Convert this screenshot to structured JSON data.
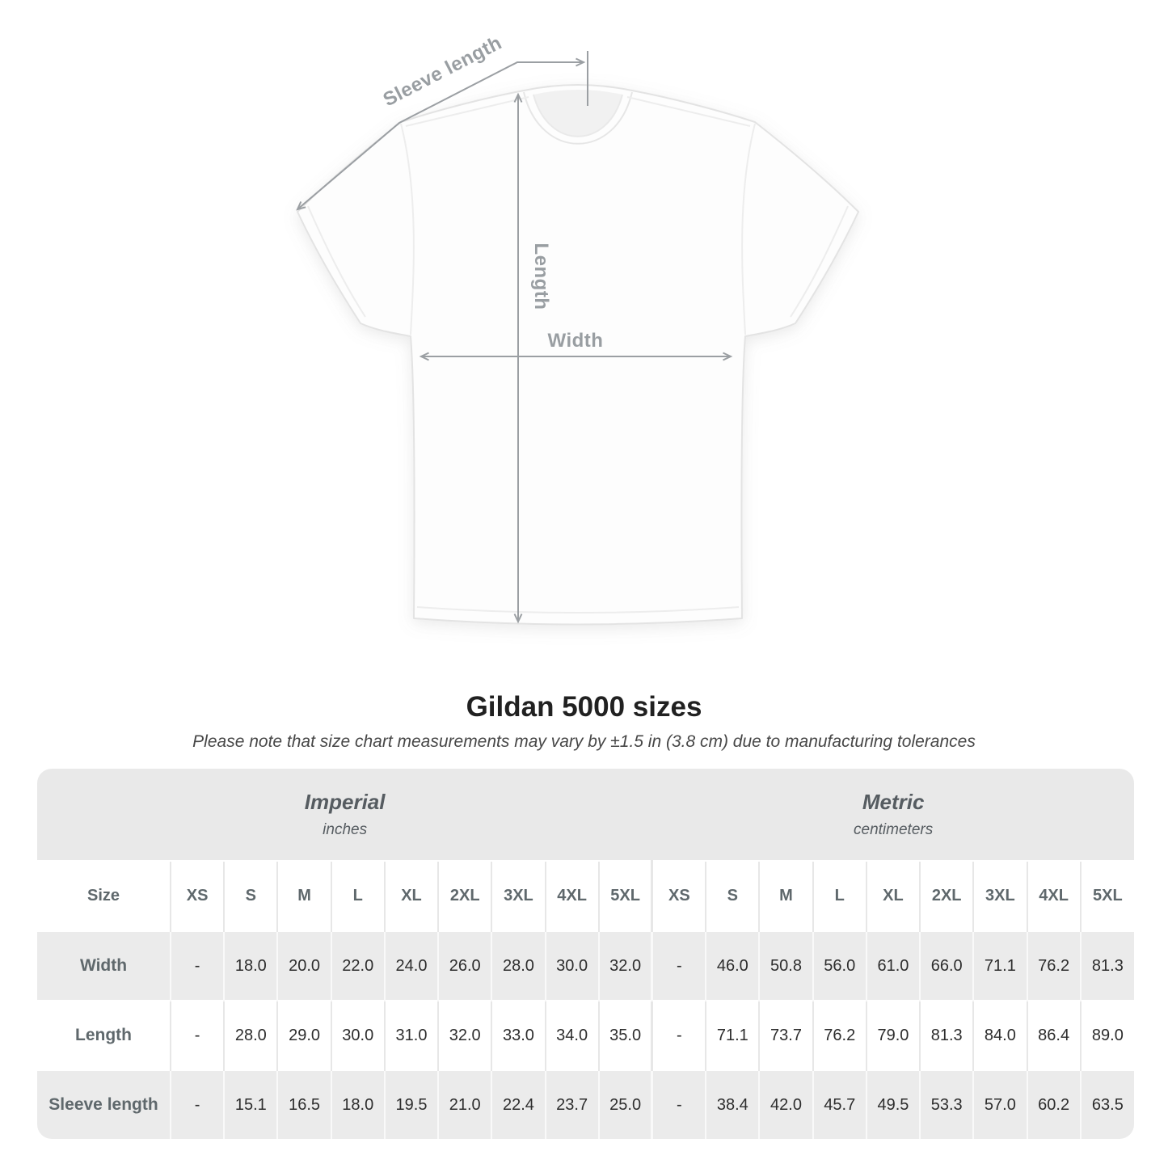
{
  "diagram": {
    "sleeve_label": "Sleeve length",
    "length_label": "Length",
    "width_label": "Width"
  },
  "heading": {
    "title": "Gildan 5000 sizes",
    "subtitle": "Please note that size chart measurements may vary by ±1.5 in (3.8 cm) due to manufacturing tolerances"
  },
  "size_table": {
    "corner_label": "Size",
    "sections": [
      {
        "name": "Imperial",
        "unit": "inches"
      },
      {
        "name": "Metric",
        "unit": "centimeters"
      }
    ],
    "sizes": [
      "XS",
      "S",
      "M",
      "L",
      "XL",
      "2XL",
      "3XL",
      "4XL",
      "5XL"
    ],
    "rows": [
      {
        "label": "Width",
        "imperial": [
          "-",
          "18.0",
          "20.0",
          "22.0",
          "24.0",
          "26.0",
          "28.0",
          "30.0",
          "32.0"
        ],
        "metric": [
          "-",
          "46.0",
          "50.8",
          "56.0",
          "61.0",
          "66.0",
          "71.1",
          "76.2",
          "81.3"
        ]
      },
      {
        "label": "Length",
        "imperial": [
          "-",
          "28.0",
          "29.0",
          "30.0",
          "31.0",
          "32.0",
          "33.0",
          "34.0",
          "35.0"
        ],
        "metric": [
          "-",
          "71.1",
          "73.7",
          "76.2",
          "79.0",
          "81.3",
          "84.0",
          "86.4",
          "89.0"
        ]
      },
      {
        "label": "Sleeve length",
        "imperial": [
          "-",
          "15.1",
          "16.5",
          "18.0",
          "19.5",
          "21.0",
          "22.4",
          "23.7",
          "25.0"
        ],
        "metric": [
          "-",
          "38.4",
          "42.0",
          "45.7",
          "49.5",
          "53.3",
          "57.0",
          "60.2",
          "63.5"
        ]
      }
    ]
  },
  "colors": {
    "band_bg": "#e9e9e9",
    "row_alt_bg": "#ebebeb",
    "header_text": "#5f686c",
    "value_text": "#2d2d2d",
    "measure_line": "#9b9fa3",
    "title_text": "#212121"
  }
}
